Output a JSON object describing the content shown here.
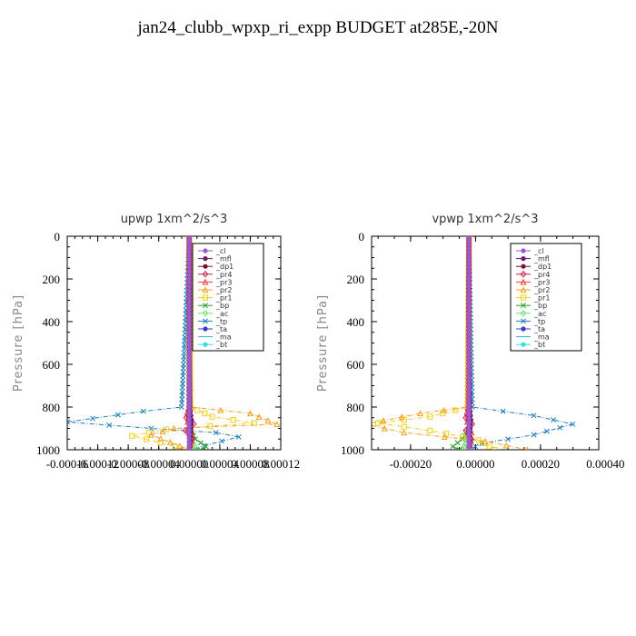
{
  "title": "jan24_clubb_wpxp_ri_expp  BUDGET at285E,-20N",
  "legend_entries": [
    {
      "name": "_cl",
      "color": "#9b59d0",
      "marker": "dot"
    },
    {
      "name": "_mfl",
      "color": "#6a1b6a",
      "marker": "dot"
    },
    {
      "name": "_dp1",
      "color": "#7a1030",
      "marker": "dot"
    },
    {
      "name": "_pr4",
      "color": "#d01a4a",
      "marker": "diamond"
    },
    {
      "name": "_pr3",
      "color": "#e8402a",
      "marker": "tri"
    },
    {
      "name": "_pr2",
      "color": "#f0a020",
      "marker": "tri"
    },
    {
      "name": "_pr1",
      "color": "#f0d020",
      "marker": "square"
    },
    {
      "name": "_bp",
      "color": "#28a028",
      "marker": "x"
    },
    {
      "name": "_ac",
      "color": "#70e070",
      "marker": "diamond"
    },
    {
      "name": "_tp",
      "color": "#1f7fb8",
      "marker": "x"
    },
    {
      "name": "_ta",
      "color": "#3a3ad0",
      "marker": "dot"
    },
    {
      "name": "_ma",
      "color": "#30b0d0",
      "marker": "none"
    },
    {
      "name": "_bt",
      "color": "#30e0e0",
      "marker": "dot"
    }
  ],
  "chart_data": [
    {
      "type": "line",
      "title": "upwp   1xm^2/s^3",
      "ylabel": "Pressure [hPa]",
      "xlim": [
        -0.00016,
        0.00012
      ],
      "ylim": [
        1000,
        0
      ],
      "xtick_labels": [
        "-0.00016",
        "-0.00012",
        "-0.00008",
        "-0.00004",
        "0.00000",
        "0.00004",
        "0.00008",
        "0.00012"
      ],
      "ytick_labels": [
        "0",
        "200",
        "400",
        "600",
        "800",
        "1000"
      ],
      "legend_position": "top-right",
      "series": [
        {
          "name": "_cl",
          "x": [
            0,
            0,
            0,
            0,
            0,
            0
          ],
          "y": [
            0,
            200,
            400,
            600,
            800,
            1000
          ]
        },
        {
          "name": "_mfl",
          "x": [
            0,
            0,
            1e-06,
            3e-06,
            2e-06,
            0
          ],
          "y": [
            0,
            400,
            800,
            860,
            920,
            1000
          ]
        },
        {
          "name": "_dp1",
          "x": [
            0,
            0,
            0,
            0,
            0
          ],
          "y": [
            0,
            300,
            600,
            800,
            1000
          ]
        },
        {
          "name": "_pr4",
          "x": [
            0,
            0,
            -4e-06,
            6e-06,
            -5e-06,
            4e-06,
            0
          ],
          "y": [
            0,
            800,
            850,
            880,
            910,
            950,
            1000
          ]
        },
        {
          "name": "_pr3",
          "x": [
            0,
            0,
            -2e-06,
            4e-06,
            0
          ],
          "y": [
            0,
            820,
            870,
            920,
            1000
          ]
        },
        {
          "name": "_pr2",
          "x": [
            0,
            2e-06,
            8e-05,
            0.000115,
            -2e-05,
            -5e-05,
            0
          ],
          "y": [
            0,
            800,
            830,
            880,
            900,
            930,
            1000
          ]
        },
        {
          "name": "_pr1",
          "x": [
            0,
            1e-06,
            3e-05,
            8.5e-05,
            -3e-05,
            -7.5e-05,
            0
          ],
          "y": [
            0,
            800,
            845,
            875,
            905,
            935,
            1000
          ]
        },
        {
          "name": "_bp",
          "x": [
            0,
            0,
            8e-06,
            2.2e-05,
            1.5e-05
          ],
          "y": [
            0,
            900,
            950,
            985,
            1000
          ]
        },
        {
          "name": "_ac",
          "x": [
            0,
            0,
            5e-06,
            1e-05
          ],
          "y": [
            0,
            930,
            970,
            1000
          ]
        },
        {
          "name": "_tp",
          "x": [
            0,
            -1e-05,
            -6e-05,
            -0.00016,
            -5e-05,
            3.5e-05,
            6.5e-05,
            2e-05,
            5e-06
          ],
          "y": [
            0,
            800,
            820,
            870,
            900,
            920,
            940,
            980,
            1000
          ]
        },
        {
          "name": "_ta",
          "x": [
            0,
            0,
            0
          ],
          "y": [
            0,
            500,
            1000
          ]
        },
        {
          "name": "_ma",
          "x": [
            0,
            0,
            0
          ],
          "y": [
            0,
            500,
            1000
          ]
        },
        {
          "name": "_bt",
          "x": [
            0,
            0,
            0
          ],
          "y": [
            0,
            500,
            1000
          ]
        }
      ]
    },
    {
      "type": "line",
      "title": "vpwp   1xm^2/s^3",
      "ylabel": "Pressure [hPa]",
      "xlim": [
        -0.0003,
        0.0004
      ],
      "ylim": [
        1000,
        0
      ],
      "xtick_labels": [
        "-0.00020",
        "0.00000",
        "0.00020",
        "0.00040"
      ],
      "ytick_labels": [
        "0",
        "200",
        "400",
        "600",
        "800",
        "1000"
      ],
      "legend_position": "top-right",
      "series": [
        {
          "name": "_cl",
          "x": [
            0,
            0,
            0,
            0,
            0,
            0
          ],
          "y": [
            0,
            200,
            400,
            600,
            800,
            1000
          ]
        },
        {
          "name": "_mfl",
          "x": [
            0,
            0,
            3e-06,
            6e-06,
            3e-06,
            0
          ],
          "y": [
            0,
            400,
            800,
            860,
            920,
            1000
          ]
        },
        {
          "name": "_dp1",
          "x": [
            0,
            0,
            0,
            0,
            0
          ],
          "y": [
            0,
            300,
            600,
            800,
            1000
          ]
        },
        {
          "name": "_pr4",
          "x": [
            0,
            0,
            -1e-05,
            1e-05,
            -1e-05,
            8e-06,
            0
          ],
          "y": [
            0,
            800,
            850,
            880,
            910,
            950,
            1000
          ]
        },
        {
          "name": "_pr3",
          "x": [
            0,
            0,
            -5e-06,
            8e-06,
            0
          ],
          "y": [
            0,
            820,
            870,
            920,
            1000
          ]
        },
        {
          "name": "_pr2",
          "x": [
            0,
            -5e-06,
            -0.00015,
            -0.00032,
            -0.0002,
            5e-05,
            0.00018
          ],
          "y": [
            0,
            800,
            830,
            880,
            920,
            960,
            1000
          ]
        },
        {
          "name": "_pr1",
          "x": [
            0,
            -3e-06,
            -0.00012,
            -0.00028,
            -0.00012,
            3e-05,
            8e-05
          ],
          "y": [
            0,
            800,
            845,
            875,
            910,
            955,
            1000
          ]
        },
        {
          "name": "_bp",
          "x": [
            0,
            0,
            -2e-05,
            -5e-05,
            -3e-05
          ],
          "y": [
            0,
            900,
            950,
            985,
            1000
          ]
        },
        {
          "name": "_ac",
          "x": [
            0,
            0,
            -1e-05,
            -2e-05
          ],
          "y": [
            0,
            930,
            970,
            1000
          ]
        },
        {
          "name": "_tp",
          "x": [
            0,
            1e-05,
            0.0002,
            0.00032,
            0.0002,
            4e-05,
            0
          ],
          "y": [
            0,
            800,
            840,
            880,
            930,
            970,
            1000
          ]
        },
        {
          "name": "_ta",
          "x": [
            0,
            0,
            0
          ],
          "y": [
            0,
            500,
            1000
          ]
        },
        {
          "name": "_ma",
          "x": [
            0,
            0,
            0
          ],
          "y": [
            0,
            500,
            1000
          ]
        },
        {
          "name": "_bt",
          "x": [
            0,
            0,
            0
          ],
          "y": [
            0,
            500,
            1000
          ]
        }
      ]
    }
  ]
}
